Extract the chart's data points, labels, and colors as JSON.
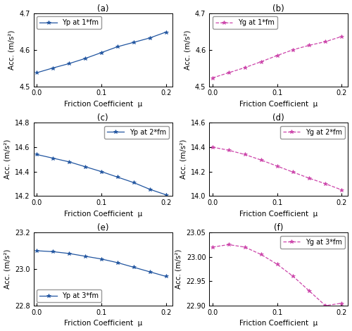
{
  "subplots": [
    {
      "label": "(a)",
      "legend": "Yp at 1*fm",
      "color": "#2155A0",
      "linestyle": "-",
      "marker": "*",
      "x": [
        0.0,
        0.025,
        0.05,
        0.075,
        0.1,
        0.125,
        0.15,
        0.175,
        0.2
      ],
      "y": [
        4.537,
        4.55,
        4.562,
        4.576,
        4.592,
        4.608,
        4.62,
        4.632,
        4.648
      ],
      "ylim": [
        4.5,
        4.7
      ],
      "yticks": [
        4.5,
        4.6,
        4.7
      ],
      "ylabel": "Acc. (m/s²)",
      "legend_loc": "upper left"
    },
    {
      "label": "(b)",
      "legend": "Yg at 1*fm",
      "color": "#CC44AA",
      "linestyle": "--",
      "marker": "*",
      "x": [
        0.0,
        0.025,
        0.05,
        0.075,
        0.1,
        0.125,
        0.15,
        0.175,
        0.2
      ],
      "y": [
        4.523,
        4.537,
        4.551,
        4.567,
        4.584,
        4.6,
        4.612,
        4.622,
        4.636
      ],
      "ylim": [
        4.5,
        4.7
      ],
      "yticks": [
        4.5,
        4.6,
        4.7
      ],
      "ylabel": "Acc. (m/s²)",
      "legend_loc": "upper left"
    },
    {
      "label": "(c)",
      "legend": "Yp at 2*fm",
      "color": "#2155A0",
      "linestyle": "-",
      "marker": "*",
      "x": [
        0.0,
        0.025,
        0.05,
        0.075,
        0.1,
        0.125,
        0.15,
        0.175,
        0.2
      ],
      "y": [
        14.54,
        14.51,
        14.48,
        14.44,
        14.4,
        14.355,
        14.31,
        14.255,
        14.21
      ],
      "ylim": [
        14.2,
        14.8
      ],
      "yticks": [
        14.2,
        14.4,
        14.6,
        14.8
      ],
      "ylabel": "Acc. (m/s²)",
      "legend_loc": "upper right"
    },
    {
      "label": "(d)",
      "legend": "Yg at 2*fm",
      "color": "#CC44AA",
      "linestyle": "--",
      "marker": "*",
      "x": [
        0.0,
        0.025,
        0.05,
        0.075,
        0.1,
        0.125,
        0.15,
        0.175,
        0.2
      ],
      "y": [
        14.4,
        14.375,
        14.34,
        14.295,
        14.245,
        14.195,
        14.145,
        14.1,
        14.05
      ],
      "ylim": [
        14.0,
        14.6
      ],
      "yticks": [
        14.0,
        14.2,
        14.4,
        14.6
      ],
      "ylabel": "Acc. (m/s²)",
      "legend_loc": "upper right"
    },
    {
      "label": "(e)",
      "legend": "Yp at 3*fm",
      "color": "#2155A0",
      "linestyle": "-",
      "marker": "*",
      "x": [
        0.0,
        0.025,
        0.05,
        0.075,
        0.1,
        0.125,
        0.15,
        0.175,
        0.2
      ],
      "y": [
        23.1,
        23.095,
        23.085,
        23.07,
        23.055,
        23.035,
        23.01,
        22.985,
        22.96
      ],
      "ylim": [
        22.8,
        23.2
      ],
      "yticks": [
        22.8,
        23.0,
        23.2
      ],
      "ylabel": "Acc. (m/s²)",
      "legend_loc": "lower left"
    },
    {
      "label": "(f)",
      "legend": "Yg at 3*fm",
      "color": "#CC44AA",
      "linestyle": "--",
      "marker": "*",
      "x": [
        0.0,
        0.025,
        0.05,
        0.075,
        0.1,
        0.125,
        0.15,
        0.175,
        0.2
      ],
      "y": [
        23.02,
        23.025,
        23.02,
        23.005,
        22.985,
        22.96,
        22.93,
        22.9,
        22.905
      ],
      "ylim": [
        22.9,
        23.05
      ],
      "yticks": [
        22.9,
        22.95,
        23.0,
        23.05
      ],
      "ylabel": "Acc. (m/s²)",
      "legend_loc": "upper right"
    }
  ],
  "xlabel": "Friction Coefficient  μ",
  "xticks": [
    0,
    0.1,
    0.2
  ],
  "background_color": "#ffffff",
  "font_size": 7.5
}
